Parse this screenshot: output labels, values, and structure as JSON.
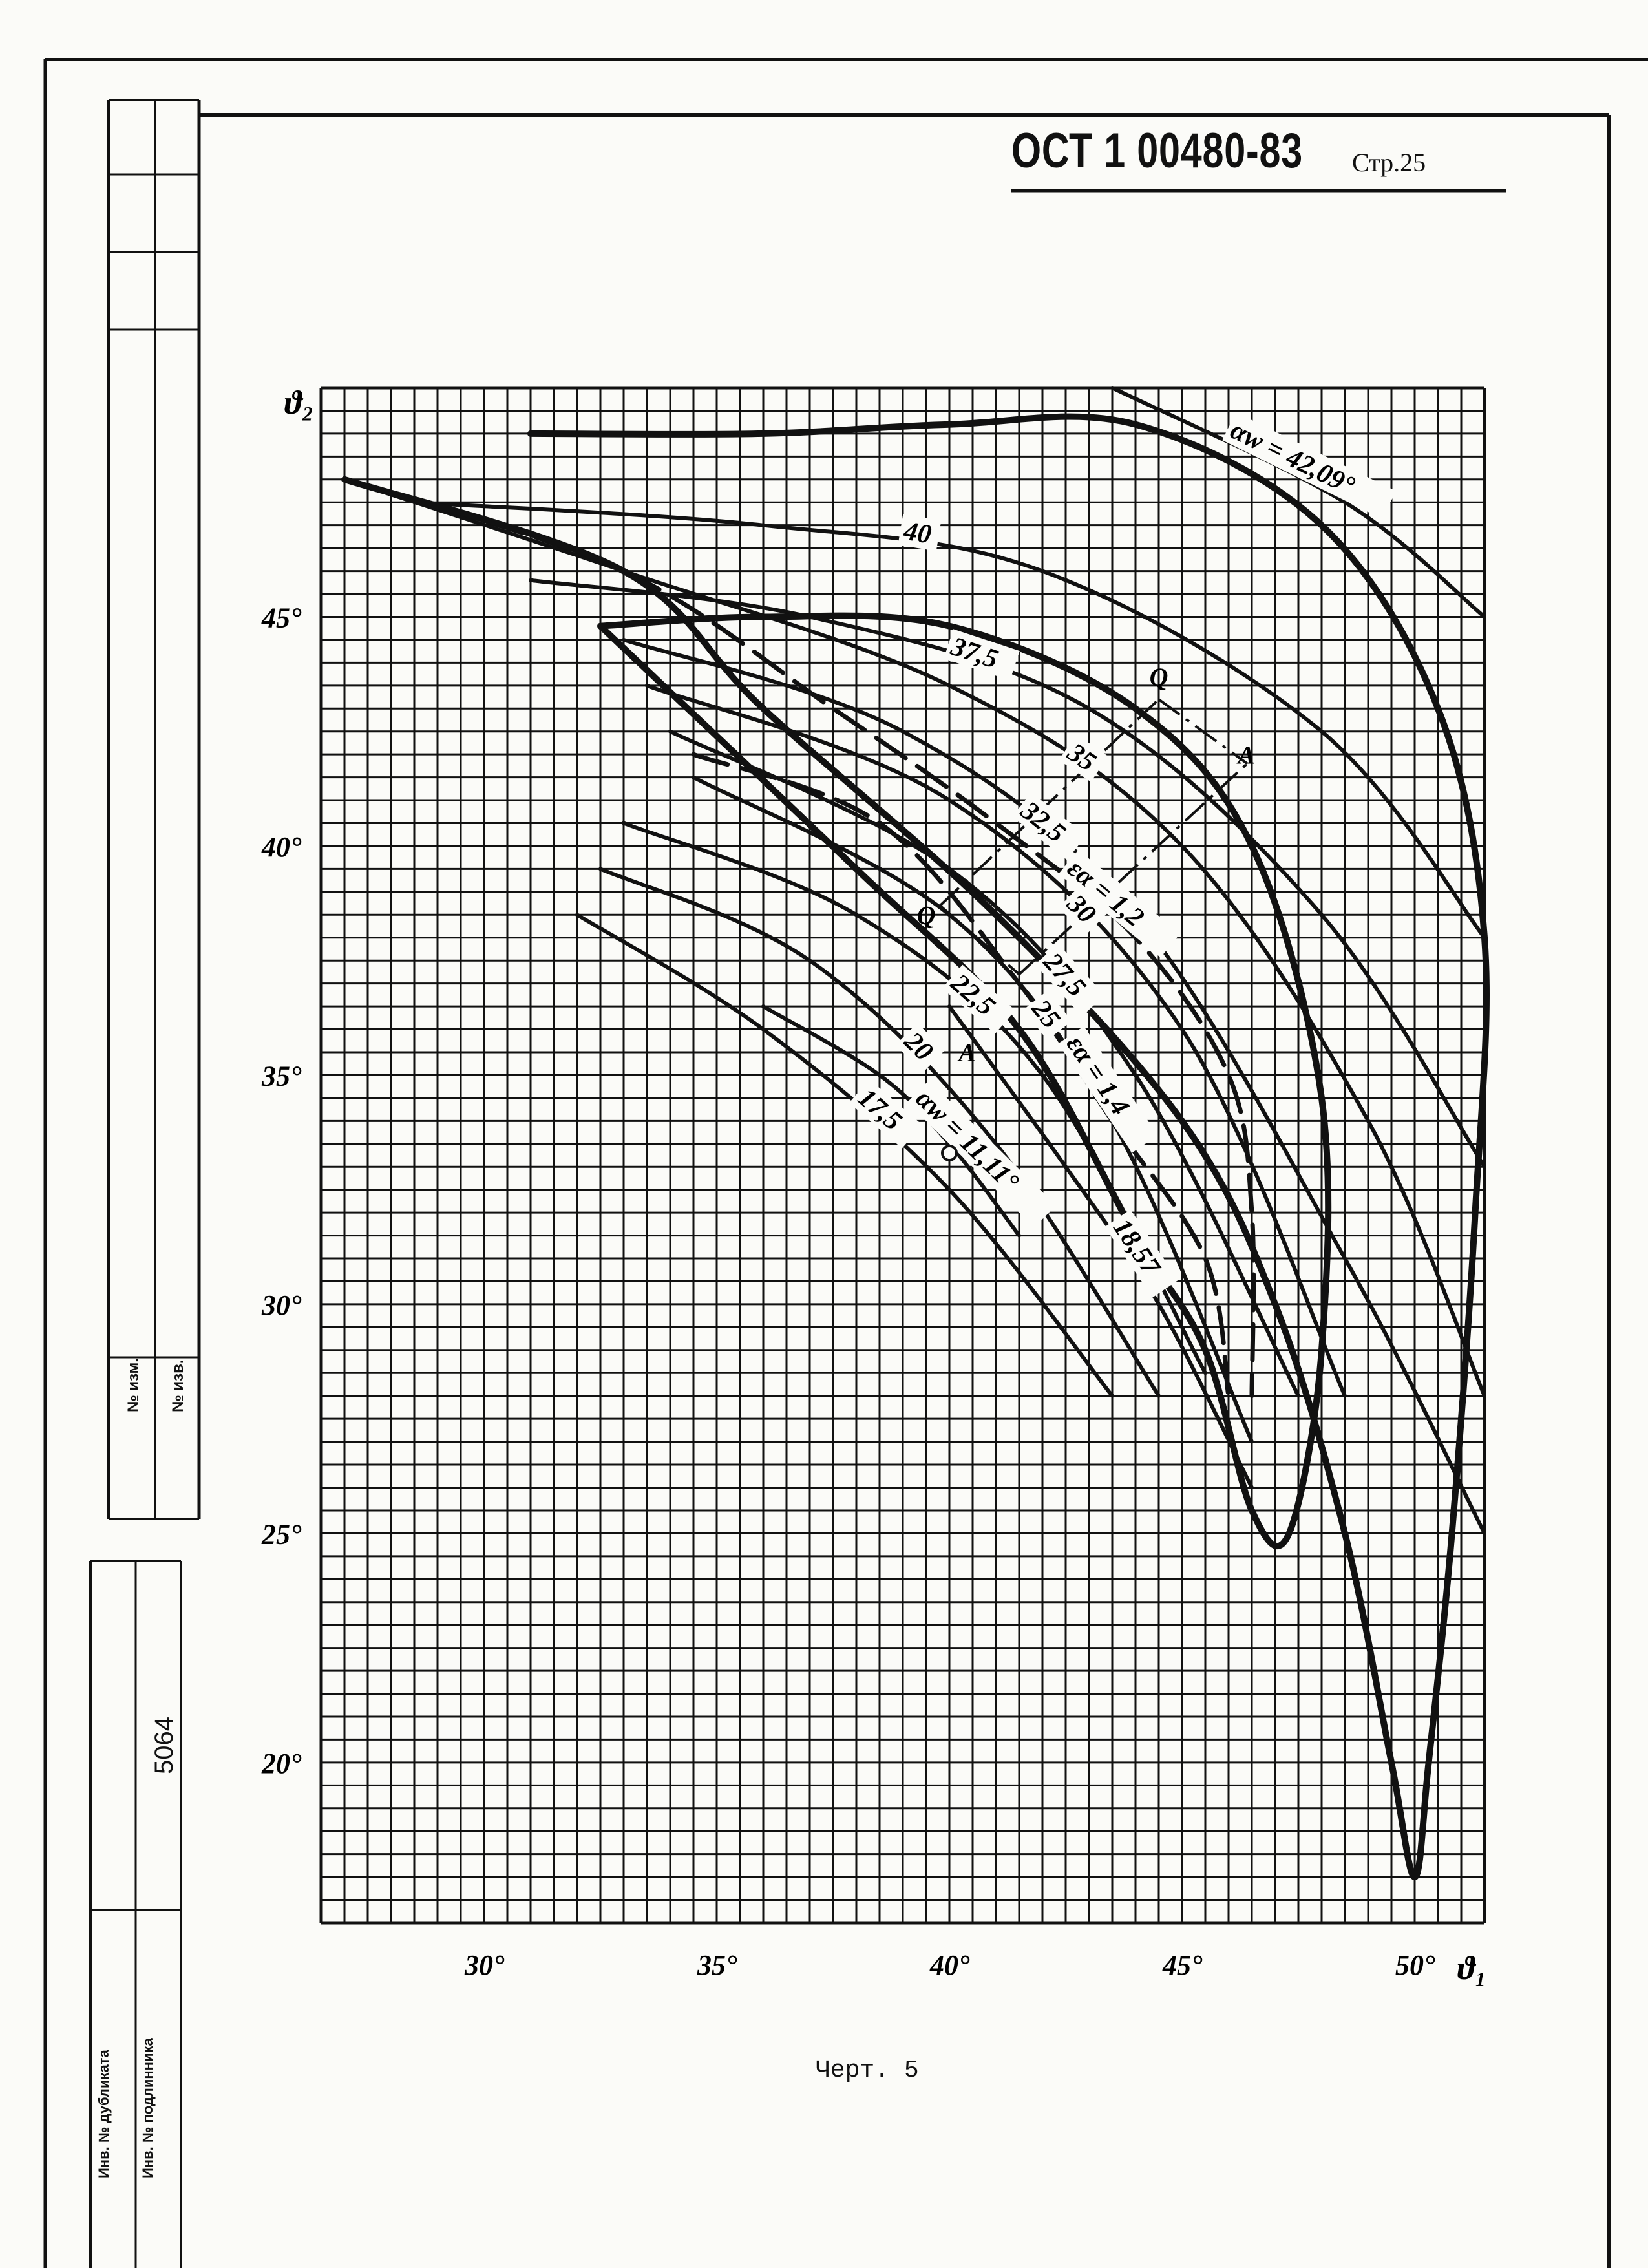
{
  "document": {
    "header": "ОСТ 1 00480-83",
    "page": "Стр.25",
    "caption": "Черт. 5"
  },
  "stamp": {
    "izm_label": "№ изм.",
    "izv_label": "№ изв.",
    "dubl_label": "Инв. № дубликата",
    "podl_label": "Инв. № подлинника",
    "podl_value": "5064"
  },
  "chart_data": {
    "type": "line",
    "title": "",
    "xlabel": "ϑ₁",
    "ylabel": "ϑ₂",
    "xlim": [
      26.5,
      51.5
    ],
    "ylim": [
      16.5,
      50
    ],
    "x_ticks": [
      "30°",
      "35°",
      "40°",
      "45°",
      "50°"
    ],
    "y_ticks": [
      "20°",
      "25°",
      "30°",
      "35°",
      "40°",
      "45°"
    ],
    "grid": true,
    "series": [
      {
        "name": "αw = 42,09°",
        "label": "αw = 42,09°",
        "style": "thin",
        "points": [
          [
            43.5,
            50.0
          ],
          [
            48.5,
            47.5
          ],
          [
            51.5,
            45.0
          ]
        ]
      },
      {
        "name": "40",
        "label": "40",
        "style": "thin",
        "points": [
          [
            28.5,
            47.5
          ],
          [
            36,
            47.0
          ],
          [
            42,
            46.0
          ],
          [
            48,
            42.5
          ],
          [
            51.5,
            38.0
          ]
        ]
      },
      {
        "name": "37,5",
        "label": "37,5",
        "style": "thin",
        "points": [
          [
            31,
            45.8
          ],
          [
            37,
            45.0
          ],
          [
            43,
            43.0
          ],
          [
            48,
            38.5
          ],
          [
            51.5,
            33.0
          ]
        ]
      },
      {
        "name": "35",
        "label": "35",
        "style": "thin",
        "points": [
          [
            27,
            48.0
          ],
          [
            33,
            46.0
          ],
          [
            40,
            43.5
          ],
          [
            45,
            40.0
          ],
          [
            49,
            34.0
          ],
          [
            51.5,
            28.0
          ]
        ]
      },
      {
        "name": "32,5",
        "label": "32,5",
        "style": "thin",
        "points": [
          [
            33,
            44.5
          ],
          [
            39,
            42.5
          ],
          [
            44,
            38.5
          ],
          [
            48.5,
            31.0
          ],
          [
            51.5,
            25.0
          ]
        ]
      },
      {
        "name": "30",
        "label": "30",
        "style": "thin",
        "points": [
          [
            33.5,
            43.5
          ],
          [
            40,
            41.0
          ],
          [
            45,
            36.0
          ],
          [
            48.5,
            28.0
          ]
        ]
      },
      {
        "name": "27,5",
        "label": "27,5",
        "style": "thin",
        "points": [
          [
            34,
            42.5
          ],
          [
            40,
            39.5
          ],
          [
            44,
            35.0
          ],
          [
            47.5,
            28.0
          ]
        ]
      },
      {
        "name": "25",
        "label": "25",
        "style": "thin",
        "points": [
          [
            34.5,
            41.5
          ],
          [
            40,
            38.5
          ],
          [
            43.5,
            34.0
          ],
          [
            46.5,
            27.0
          ]
        ]
      },
      {
        "name": "22,5",
        "label": "22,5",
        "style": "thin",
        "points": [
          [
            33,
            40.5
          ],
          [
            38,
            38.5
          ],
          [
            42,
            35.0
          ],
          [
            45.5,
            28.5
          ]
        ]
      },
      {
        "name": "20",
        "label": "20",
        "style": "thin",
        "points": [
          [
            32.5,
            39.5
          ],
          [
            37,
            37.5
          ],
          [
            41,
            33.5
          ],
          [
            44.5,
            28.0
          ]
        ]
      },
      {
        "name": "17,5",
        "label": "17,5",
        "style": "thin",
        "points": [
          [
            32,
            38.5
          ],
          [
            36,
            36.0
          ],
          [
            40,
            32.5
          ],
          [
            43.5,
            28.0
          ]
        ]
      },
      {
        "name": "αw = 11,11°",
        "label": "αw = 11,11°",
        "style": "thin",
        "points": [
          [
            36,
            36.5
          ],
          [
            38.5,
            35.0
          ],
          [
            40,
            33.5
          ],
          [
            41.5,
            31.5
          ]
        ]
      },
      {
        "name": "18,57",
        "label": "18,57",
        "style": "thin",
        "points": [
          [
            40,
            36.5
          ],
          [
            42.5,
            33.0
          ],
          [
            44.5,
            30.0
          ],
          [
            46.5,
            26.0
          ]
        ]
      },
      {
        "name": "εα = 1,2",
        "label": "εα = 1,2",
        "style": "dashed",
        "points": [
          [
            27,
            48.0
          ],
          [
            33,
            46.0
          ],
          [
            37.5,
            43.0
          ],
          [
            41,
            40.5
          ],
          [
            44,
            38.0
          ],
          [
            46,
            35.0
          ],
          [
            46.5,
            32.0
          ],
          [
            46.5,
            28.0
          ]
        ]
      },
      {
        "name": "εα = 1,4",
        "label": "εα = 1,4",
        "style": "dashed",
        "points": [
          [
            34.5,
            42.0
          ],
          [
            38.5,
            40.5
          ],
          [
            41.5,
            37.0
          ],
          [
            43.5,
            34.0
          ],
          [
            45.5,
            31.0
          ],
          [
            46,
            28.0
          ]
        ]
      },
      {
        "name": "outer boundary",
        "label": "",
        "style": "bold",
        "points": [
          [
            31,
            49.0
          ],
          [
            36,
            49.0
          ],
          [
            40,
            49.2
          ],
          [
            44,
            49.2
          ],
          [
            48,
            47.0
          ],
          [
            50.5,
            43.0
          ],
          [
            51.5,
            38.0
          ],
          [
            51.3,
            32.0
          ],
          [
            50.8,
            25.0
          ],
          [
            50.3,
            20.0
          ],
          [
            50,
            17.5
          ],
          [
            49.5,
            20.0
          ],
          [
            48.5,
            25.0
          ],
          [
            47,
            30.0
          ],
          [
            45,
            34.0
          ],
          [
            41,
            38.5
          ],
          [
            36,
            43.0
          ],
          [
            33,
            46.0
          ],
          [
            27,
            48.0
          ]
        ]
      },
      {
        "name": "inner boundary",
        "label": "",
        "style": "bold",
        "points": [
          [
            32.5,
            44.8
          ],
          [
            36,
            45.0
          ],
          [
            40,
            44.8
          ],
          [
            44,
            43.0
          ],
          [
            46.5,
            40.0
          ],
          [
            48,
            34.5
          ],
          [
            48,
            29.0
          ],
          [
            47.3,
            25.0
          ],
          [
            46.5,
            25.5
          ],
          [
            45.5,
            29.0
          ],
          [
            44,
            31.5
          ],
          [
            41.5,
            36.0
          ],
          [
            38,
            39.5
          ],
          [
            32.5,
            44.8
          ]
        ]
      }
    ],
    "annotations": [
      {
        "text": "Q",
        "x": 44.3,
        "y": 43.5
      },
      {
        "text": "A",
        "x": 46.2,
        "y": 41.8
      },
      {
        "text": "Q",
        "x": 39.3,
        "y": 38.3
      },
      {
        "text": "A",
        "x": 40.2,
        "y": 35.3
      }
    ],
    "construction_lines": [
      {
        "from": [
          39.8,
          38.7
        ],
        "to": [
          44.5,
          43.2
        ]
      },
      {
        "from": [
          41.5,
          37.2
        ],
        "to": [
          46.4,
          41.8
        ]
      },
      {
        "from": [
          39.8,
          38.7
        ],
        "to": [
          41.5,
          37.2
        ]
      },
      {
        "from": [
          44.5,
          43.2
        ],
        "to": [
          46.4,
          41.8
        ]
      }
    ],
    "marked_point": {
      "x": 40.0,
      "y": 33.3
    }
  }
}
